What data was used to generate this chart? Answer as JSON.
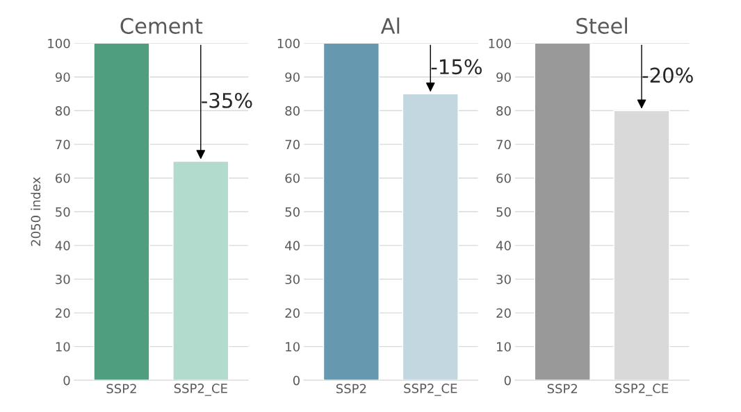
{
  "chart_data": [
    {
      "type": "bar",
      "title": "Cement",
      "ylabel": "2050 index",
      "categories": [
        "SSP2",
        "SSP2_CE"
      ],
      "values": [
        100,
        65
      ],
      "colors": [
        "#4f9e7f",
        "#b3dbcd"
      ],
      "ylim": [
        0,
        100
      ],
      "yticks": [
        0,
        10,
        20,
        30,
        40,
        50,
        60,
        70,
        80,
        90,
        100
      ],
      "grid": "y",
      "annotations": [
        {
          "text": "-35%",
          "x": "SSP2_CE",
          "y": 65
        }
      ]
    },
    {
      "type": "bar",
      "title": "Al",
      "categories": [
        "SSP2",
        "SSP2_CE"
      ],
      "values": [
        100,
        85
      ],
      "colors": [
        "#6699b0",
        "#c3d7e0"
      ],
      "ylim": [
        0,
        100
      ],
      "yticks": [
        0,
        10,
        20,
        30,
        40,
        50,
        60,
        70,
        80,
        90,
        100
      ],
      "grid": "y",
      "annotations": [
        {
          "text": "-15%",
          "x": "SSP2_CE",
          "y": 85
        }
      ]
    },
    {
      "type": "bar",
      "title": "Steel",
      "categories": [
        "SSP2",
        "SSP2_CE"
      ],
      "values": [
        100,
        80
      ],
      "colors": [
        "#999999",
        "#d9d9d9"
      ],
      "ylim": [
        0,
        100
      ],
      "yticks": [
        0,
        10,
        20,
        30,
        40,
        50,
        60,
        70,
        80,
        90,
        100
      ],
      "grid": "y",
      "annotations": [
        {
          "text": "-20%",
          "x": "SSP2_CE",
          "y": 80
        }
      ]
    }
  ]
}
